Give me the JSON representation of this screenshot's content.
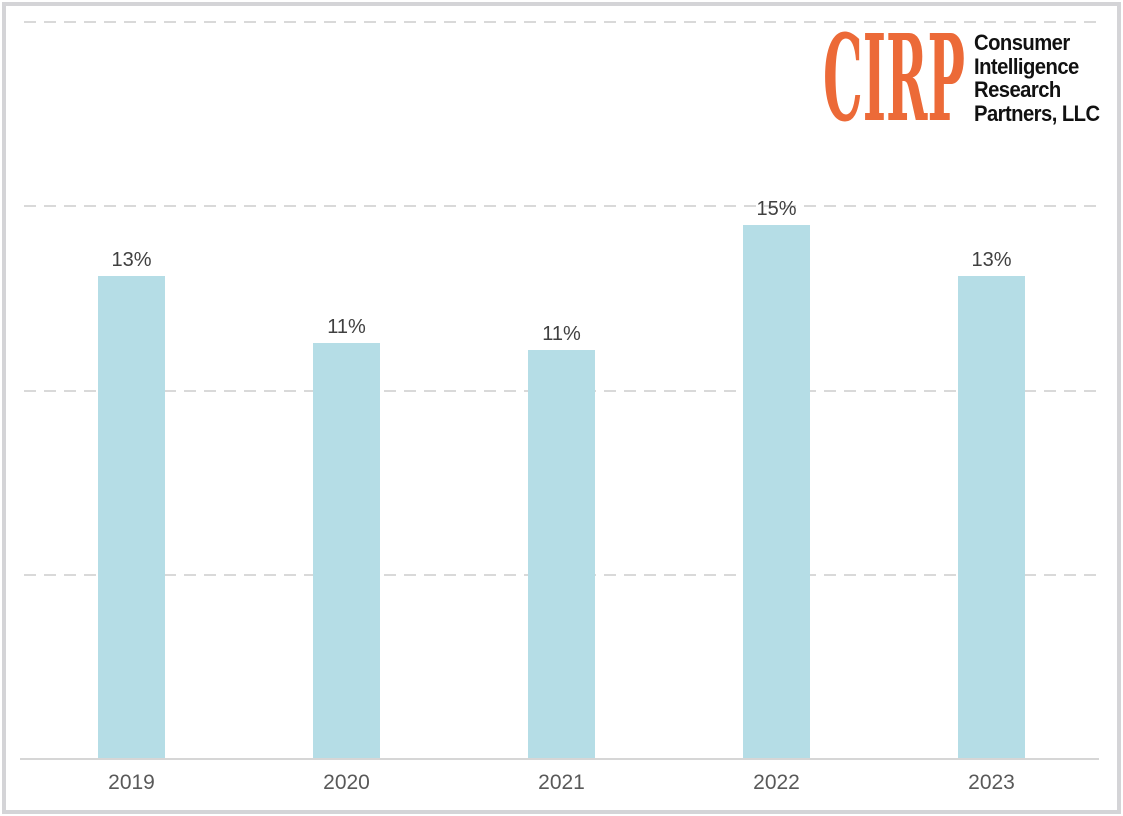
{
  "logo": {
    "mark": "CIRP",
    "mark_color": "#ec6a38",
    "lines": [
      "Consumer",
      "Intelligence",
      "Research",
      "Partners, LLC"
    ],
    "text_color": "#111111"
  },
  "chart_data": {
    "type": "bar",
    "title": "",
    "xlabel": "",
    "ylabel": "",
    "categories": [
      "2019",
      "2020",
      "2021",
      "2022",
      "2023"
    ],
    "values": [
      13,
      11,
      11,
      15,
      13
    ],
    "data_labels": [
      "13%",
      "11%",
      "11%",
      "15%",
      "13%"
    ],
    "values_precise": [
      13.1,
      11.3,
      11.1,
      14.5,
      13.1
    ],
    "unit": "%",
    "ylim": [
      0,
      20
    ],
    "gridline_values": [
      5,
      10,
      15,
      20
    ],
    "grid_style": "dashed-horizontal",
    "legend": "none",
    "y_axis_labels_visible": false,
    "bar_color": "#b5dde6",
    "data_label_color": "#404040",
    "axis_label_color": "#595959",
    "gridline_color": "#d9d9d9",
    "axis_line_color": "#d6d6d6",
    "frame_border_color": "#d4d4d7",
    "background_color": "#ffffff"
  }
}
